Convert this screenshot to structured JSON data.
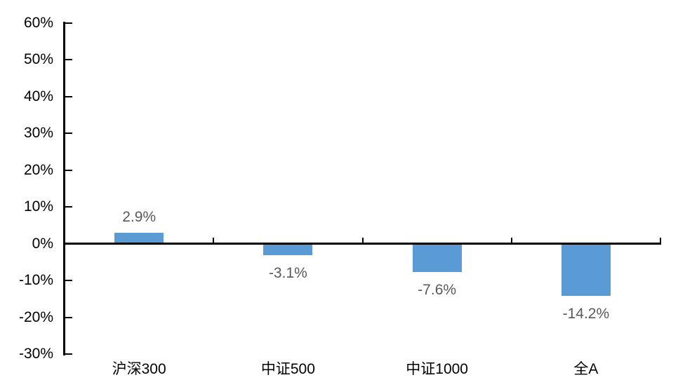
{
  "chart_data": {
    "type": "bar",
    "title": "",
    "xlabel": "",
    "ylabel": "",
    "categories": [
      "沪深300",
      "中证500",
      "中证1000",
      "全A"
    ],
    "values": [
      2.9,
      -3.1,
      -7.6,
      -14.2
    ],
    "data_labels": [
      "2.9%",
      "-3.1%",
      "-7.6%",
      "-14.2%"
    ],
    "ylim": [
      -30,
      60
    ],
    "ytick_step": 10,
    "yticks": [
      60,
      50,
      40,
      30,
      20,
      10,
      0,
      -10,
      -20,
      -30
    ],
    "ytick_labels": [
      "60%",
      "50%",
      "40%",
      "30%",
      "20%",
      "10%",
      "0%",
      "-10%",
      "-20%",
      "-30%"
    ],
    "grid": false,
    "legend": null,
    "bar_color": "#5B9BD5",
    "data_label_color": "#595959",
    "axis_color": "#000000",
    "background_color": "#FFFFFF"
  }
}
